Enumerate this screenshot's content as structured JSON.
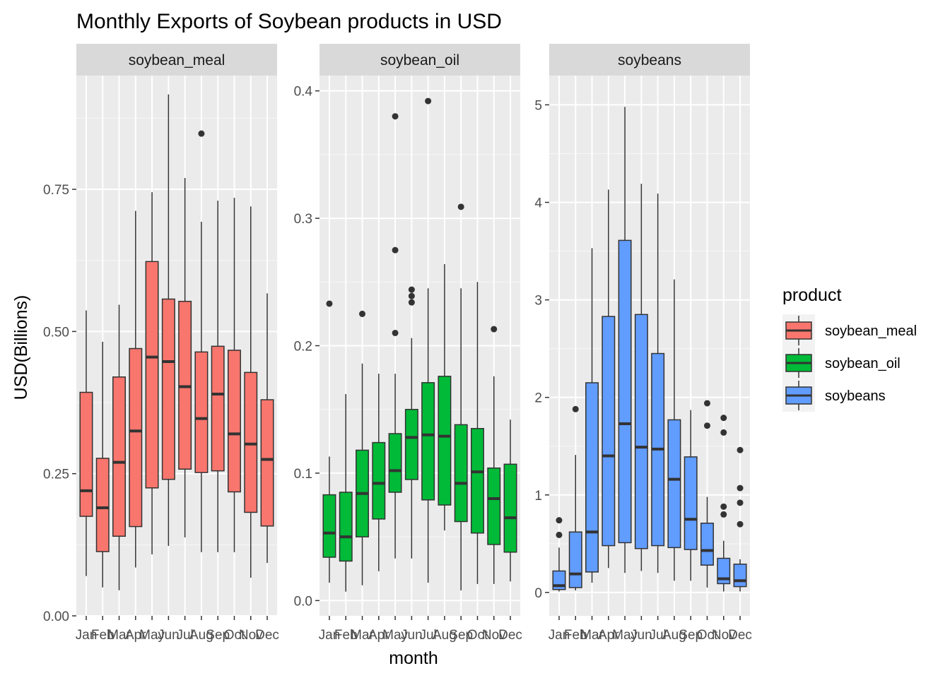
{
  "chart_data": {
    "type": "boxplot",
    "title": "Monthly Exports of Soybean products in USD",
    "xlabel": "month",
    "ylabel": "USD(Billions)",
    "categories": [
      "Jan",
      "Feb",
      "Mar",
      "Apr",
      "May",
      "Jun",
      "Jul",
      "Aug",
      "Sep",
      "Oct",
      "Nov",
      "Dec"
    ],
    "grid": true,
    "legend": {
      "title": "product",
      "position": "right",
      "entries": [
        {
          "label": "soybean_meal",
          "color": "#F8766D"
        },
        {
          "label": "soybean_oil",
          "color": "#00BA38"
        },
        {
          "label": "soybeans",
          "color": "#619CFF"
        }
      ]
    },
    "panels": [
      {
        "name": "soybean_meal",
        "color": "#F8766D",
        "ylim": [
          0,
          0.95
        ],
        "yticks": [
          0,
          0.25,
          0.5,
          0.75
        ],
        "ytick_labels": [
          "0.00",
          "0.25",
          "0.50",
          "0.75"
        ],
        "boxes": [
          {
            "month": "Jan",
            "whisker_low": 0.07,
            "q1": 0.175,
            "median": 0.22,
            "q3": 0.393,
            "whisker_high": 0.537,
            "outliers": []
          },
          {
            "month": "Feb",
            "whisker_low": 0.05,
            "q1": 0.113,
            "median": 0.19,
            "q3": 0.277,
            "whisker_high": 0.482,
            "outliers": []
          },
          {
            "month": "Mar",
            "whisker_low": 0.045,
            "q1": 0.14,
            "median": 0.27,
            "q3": 0.42,
            "whisker_high": 0.547,
            "outliers": []
          },
          {
            "month": "Apr",
            "whisker_low": 0.085,
            "q1": 0.157,
            "median": 0.325,
            "q3": 0.47,
            "whisker_high": 0.712,
            "outliers": []
          },
          {
            "month": "May",
            "whisker_low": 0.108,
            "q1": 0.225,
            "median": 0.455,
            "q3": 0.623,
            "whisker_high": 0.745,
            "outliers": []
          },
          {
            "month": "Jun",
            "whisker_low": 0.123,
            "q1": 0.24,
            "median": 0.447,
            "q3": 0.557,
            "whisker_high": 0.917,
            "outliers": []
          },
          {
            "month": "Jul",
            "whisker_low": 0.138,
            "q1": 0.258,
            "median": 0.403,
            "q3": 0.553,
            "whisker_high": 0.77,
            "outliers": []
          },
          {
            "month": "Aug",
            "whisker_low": 0.112,
            "q1": 0.252,
            "median": 0.347,
            "q3": 0.464,
            "whisker_high": 0.693,
            "outliers": [
              0.848
            ]
          },
          {
            "month": "Sep",
            "whisker_low": 0.112,
            "q1": 0.255,
            "median": 0.39,
            "q3": 0.474,
            "whisker_high": 0.73,
            "outliers": []
          },
          {
            "month": "Oct",
            "whisker_low": 0.112,
            "q1": 0.218,
            "median": 0.32,
            "q3": 0.467,
            "whisker_high": 0.735,
            "outliers": []
          },
          {
            "month": "Nov",
            "whisker_low": 0.067,
            "q1": 0.182,
            "median": 0.302,
            "q3": 0.428,
            "whisker_high": 0.72,
            "outliers": []
          },
          {
            "month": "Dec",
            "whisker_low": 0.093,
            "q1": 0.158,
            "median": 0.275,
            "q3": 0.38,
            "whisker_high": 0.567,
            "outliers": []
          }
        ]
      },
      {
        "name": "soybean_oil",
        "color": "#00BA38",
        "ylim": [
          -0.012,
          0.412
        ],
        "yticks": [
          0,
          0.1,
          0.2,
          0.3,
          0.4
        ],
        "ytick_labels": [
          "0.0",
          "0.1",
          "0.2",
          "0.3",
          "0.4"
        ],
        "boxes": [
          {
            "month": "Jan",
            "whisker_low": 0.014,
            "q1": 0.034,
            "median": 0.053,
            "q3": 0.083,
            "whisker_high": 0.113,
            "outliers": [
              0.233
            ]
          },
          {
            "month": "Feb",
            "whisker_low": 0.007,
            "q1": 0.031,
            "median": 0.05,
            "q3": 0.085,
            "whisker_high": 0.162,
            "outliers": []
          },
          {
            "month": "Mar",
            "whisker_low": 0.012,
            "q1": 0.05,
            "median": 0.084,
            "q3": 0.118,
            "whisker_high": 0.186,
            "outliers": [
              0.225
            ]
          },
          {
            "month": "Apr",
            "whisker_low": 0.023,
            "q1": 0.064,
            "median": 0.092,
            "q3": 0.124,
            "whisker_high": 0.178,
            "outliers": []
          },
          {
            "month": "May",
            "whisker_low": 0.033,
            "q1": 0.085,
            "median": 0.102,
            "q3": 0.131,
            "whisker_high": 0.178,
            "outliers": [
              0.21,
              0.275,
              0.38
            ]
          },
          {
            "month": "Jun",
            "whisker_low": 0.033,
            "q1": 0.095,
            "median": 0.128,
            "q3": 0.15,
            "whisker_high": 0.206,
            "outliers": [
              0.234,
              0.239,
              0.244
            ]
          },
          {
            "month": "Jul",
            "whisker_low": 0.014,
            "q1": 0.079,
            "median": 0.13,
            "q3": 0.171,
            "whisker_high": 0.245,
            "outliers": [
              0.392
            ]
          },
          {
            "month": "Aug",
            "whisker_low": 0.055,
            "q1": 0.075,
            "median": 0.129,
            "q3": 0.176,
            "whisker_high": 0.264,
            "outliers": []
          },
          {
            "month": "Sep",
            "whisker_low": 0.008,
            "q1": 0.062,
            "median": 0.092,
            "q3": 0.138,
            "whisker_high": 0.245,
            "outliers": [
              0.309
            ]
          },
          {
            "month": "Oct",
            "whisker_low": 0.013,
            "q1": 0.053,
            "median": 0.101,
            "q3": 0.135,
            "whisker_high": 0.25,
            "outliers": []
          },
          {
            "month": "Nov",
            "whisker_low": 0.013,
            "q1": 0.044,
            "median": 0.08,
            "q3": 0.104,
            "whisker_high": 0.176,
            "outliers": [
              0.213
            ]
          },
          {
            "month": "Dec",
            "whisker_low": 0.015,
            "q1": 0.038,
            "median": 0.065,
            "q3": 0.107,
            "whisker_high": 0.142,
            "outliers": []
          }
        ]
      },
      {
        "name": "soybeans",
        "color": "#619CFF",
        "ylim": [
          -0.24,
          5.3
        ],
        "yticks": [
          0,
          1,
          2,
          3,
          4,
          5
        ],
        "ytick_labels": [
          "0",
          "1",
          "2",
          "3",
          "4",
          "5"
        ],
        "boxes": [
          {
            "month": "Jan",
            "whisker_low": 0.01,
            "q1": 0.03,
            "median": 0.07,
            "q3": 0.22,
            "whisker_high": 0.46,
            "outliers": [
              0.59,
              0.74
            ]
          },
          {
            "month": "Feb",
            "whisker_low": 0.02,
            "q1": 0.05,
            "median": 0.19,
            "q3": 0.62,
            "whisker_high": 1.41,
            "outliers": [
              1.88
            ]
          },
          {
            "month": "Mar",
            "whisker_low": 0.1,
            "q1": 0.21,
            "median": 0.62,
            "q3": 2.15,
            "whisker_high": 3.53,
            "outliers": []
          },
          {
            "month": "Apr",
            "whisker_low": 0.25,
            "q1": 0.48,
            "median": 1.4,
            "q3": 2.83,
            "whisker_high": 4.13,
            "outliers": []
          },
          {
            "month": "May",
            "whisker_low": 0.2,
            "q1": 0.51,
            "median": 1.73,
            "q3": 3.61,
            "whisker_high": 4.98,
            "outliers": []
          },
          {
            "month": "Jun",
            "whisker_low": 0.22,
            "q1": 0.45,
            "median": 1.49,
            "q3": 2.85,
            "whisker_high": 4.19,
            "outliers": []
          },
          {
            "month": "Jul",
            "whisker_low": 0.2,
            "q1": 0.48,
            "median": 1.47,
            "q3": 2.45,
            "whisker_high": 4.09,
            "outliers": []
          },
          {
            "month": "Aug",
            "whisker_low": 0.12,
            "q1": 0.46,
            "median": 1.16,
            "q3": 1.77,
            "whisker_high": 3.21,
            "outliers": []
          },
          {
            "month": "Sep",
            "whisker_low": 0.12,
            "q1": 0.44,
            "median": 0.75,
            "q3": 1.39,
            "whisker_high": 1.87,
            "outliers": []
          },
          {
            "month": "Oct",
            "whisker_low": 0.05,
            "q1": 0.28,
            "median": 0.43,
            "q3": 0.71,
            "whisker_high": 0.98,
            "outliers": [
              1.71,
              1.94
            ]
          },
          {
            "month": "Nov",
            "whisker_low": 0.01,
            "q1": 0.09,
            "median": 0.14,
            "q3": 0.35,
            "whisker_high": 0.53,
            "outliers": [
              0.8,
              0.88,
              1.64,
              1.79
            ]
          },
          {
            "month": "Dec",
            "whisker_low": 0.01,
            "q1": 0.06,
            "median": 0.12,
            "q3": 0.29,
            "whisker_high": 0.34,
            "outliers": [
              0.7,
              0.92,
              1.07,
              1.46
            ]
          }
        ]
      }
    ]
  }
}
